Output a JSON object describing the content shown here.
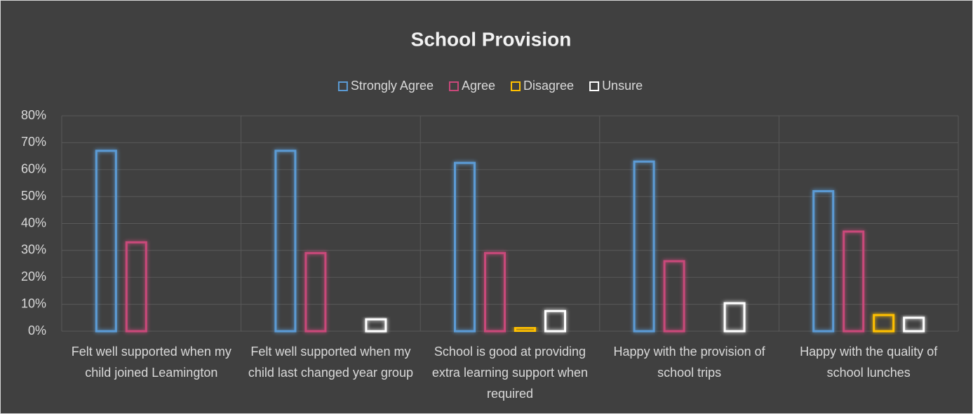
{
  "chart_data": {
    "type": "bar",
    "title": "School Provision",
    "categories": [
      "Felt well supported when my child joined Leamington",
      "Felt well supported when my child last changed year group",
      "School is good at providing extra learning support when required",
      "Happy with the provision of school trips",
      "Happy with the quality of school lunches"
    ],
    "series": [
      {
        "name": "Strongly Agree",
        "color": "#5b9bd5",
        "values": [
          67,
          67,
          62.5,
          63,
          52
        ]
      },
      {
        "name": "Agree",
        "color": "#c9487a",
        "values": [
          33,
          29,
          29,
          26,
          37
        ]
      },
      {
        "name": "Disagree",
        "color": "#ffc000",
        "values": [
          0,
          0,
          1.3,
          0,
          6
        ]
      },
      {
        "name": "Unsure",
        "color": "#ffffff",
        "values": [
          0,
          4.4,
          7.5,
          10.4,
          5
        ]
      }
    ],
    "ylim": [
      0,
      80
    ],
    "yticks": [
      {
        "value": 0,
        "label": "0%"
      },
      {
        "value": 10,
        "label": "10%"
      },
      {
        "value": 20,
        "label": "20%"
      },
      {
        "value": 30,
        "label": "30%"
      },
      {
        "value": 40,
        "label": "40%"
      },
      {
        "value": 50,
        "label": "50%"
      },
      {
        "value": 60,
        "label": "60%"
      },
      {
        "value": 70,
        "label": "70%"
      },
      {
        "value": 80,
        "label": "80%"
      }
    ],
    "grid": true,
    "legend": "top"
  }
}
